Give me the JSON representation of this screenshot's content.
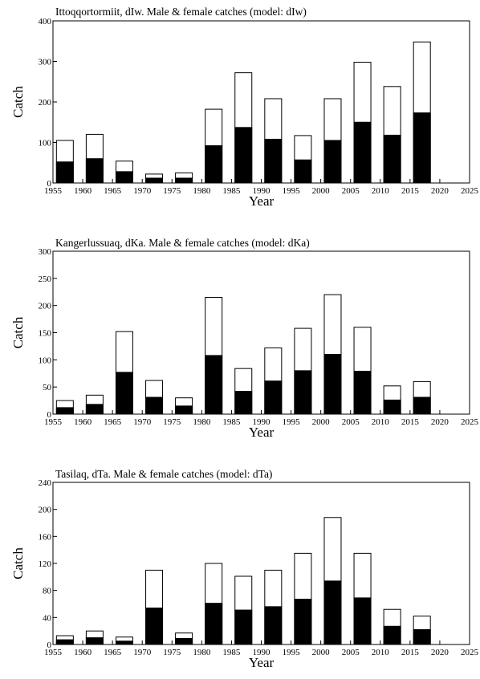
{
  "colors": {
    "female": "#ffffff",
    "male": "#000000",
    "frame": "#000000"
  },
  "chart_data": [
    {
      "type": "bar",
      "stacked": true,
      "title": "Ittoqqortormiit, dIw. Male & female catches (model: dIw)",
      "xlabel": "Year",
      "ylabel": "Catch",
      "xlim": [
        1955,
        2025
      ],
      "ylim": [
        0,
        400
      ],
      "xticks": [
        1955,
        1960,
        1965,
        1970,
        1975,
        1980,
        1985,
        1990,
        1995,
        2000,
        2005,
        2010,
        2015,
        2020,
        2025
      ],
      "yticks": [
        0,
        100,
        200,
        300,
        400
      ],
      "x": [
        1957,
        1962,
        1967,
        1972,
        1977,
        1982,
        1987,
        1992,
        1997,
        2002,
        2007,
        2012,
        2017
      ],
      "series": [
        {
          "values": [
            52,
            60,
            28,
            12,
            12,
            92,
            137,
            108,
            57,
            105,
            150,
            118,
            173
          ]
        },
        {
          "values": [
            53,
            60,
            26,
            10,
            13,
            90,
            135,
            100,
            60,
            103,
            148,
            120,
            175
          ]
        }
      ],
      "totals": [
        105,
        120,
        54,
        22,
        25,
        182,
        272,
        208,
        117,
        208,
        298,
        238,
        348
      ],
      "grid": false
    },
    {
      "type": "bar",
      "stacked": true,
      "title": "Kangerlussuaq, dKa. Male & female catches (model: dKa)",
      "xlabel": "Year",
      "ylabel": "Catch",
      "xlim": [
        1955,
        2025
      ],
      "ylim": [
        0,
        300
      ],
      "xticks": [
        1955,
        1960,
        1965,
        1970,
        1975,
        1980,
        1985,
        1990,
        1995,
        2000,
        2005,
        2010,
        2015,
        2020,
        2025
      ],
      "yticks": [
        0,
        50,
        100,
        150,
        200,
        250,
        300
      ],
      "x": [
        1957,
        1962,
        1967,
        1972,
        1977,
        1982,
        1987,
        1992,
        1997,
        2002,
        2007,
        2012,
        2017
      ],
      "series": [
        {
          "values": [
            12,
            18,
            77,
            31,
            15,
            108,
            42,
            61,
            80,
            110,
            79,
            26,
            31
          ]
        },
        {
          "values": [
            13,
            17,
            75,
            31,
            15,
            107,
            42,
            61,
            78,
            110,
            81,
            26,
            29
          ]
        }
      ],
      "totals": [
        25,
        35,
        152,
        62,
        30,
        215,
        84,
        122,
        158,
        220,
        160,
        52,
        60
      ],
      "grid": false
    },
    {
      "type": "bar",
      "stacked": true,
      "title": "Tasilaq, dTa. Male & female catches (model: dTa)",
      "xlabel": "Year",
      "ylabel": "Catch",
      "xlim": [
        1955,
        2025
      ],
      "ylim": [
        0,
        240
      ],
      "xticks": [
        1955,
        1960,
        1965,
        1970,
        1975,
        1980,
        1985,
        1990,
        1995,
        2000,
        2005,
        2010,
        2015,
        2020,
        2025
      ],
      "yticks": [
        0,
        40,
        80,
        120,
        160,
        200,
        240
      ],
      "x": [
        1957,
        1962,
        1967,
        1972,
        1977,
        1982,
        1987,
        1992,
        1997,
        2002,
        2007,
        2012,
        2017
      ],
      "series": [
        {
          "values": [
            7,
            10,
            5,
            54,
            9,
            61,
            51,
            56,
            67,
            94,
            69,
            27,
            22
          ]
        },
        {
          "values": [
            6,
            10,
            6,
            56,
            8,
            59,
            50,
            54,
            68,
            94,
            66,
            25,
            20
          ]
        }
      ],
      "totals": [
        13,
        20,
        11,
        110,
        17,
        120,
        101,
        110,
        135,
        188,
        135,
        52,
        42
      ],
      "grid": false
    }
  ]
}
